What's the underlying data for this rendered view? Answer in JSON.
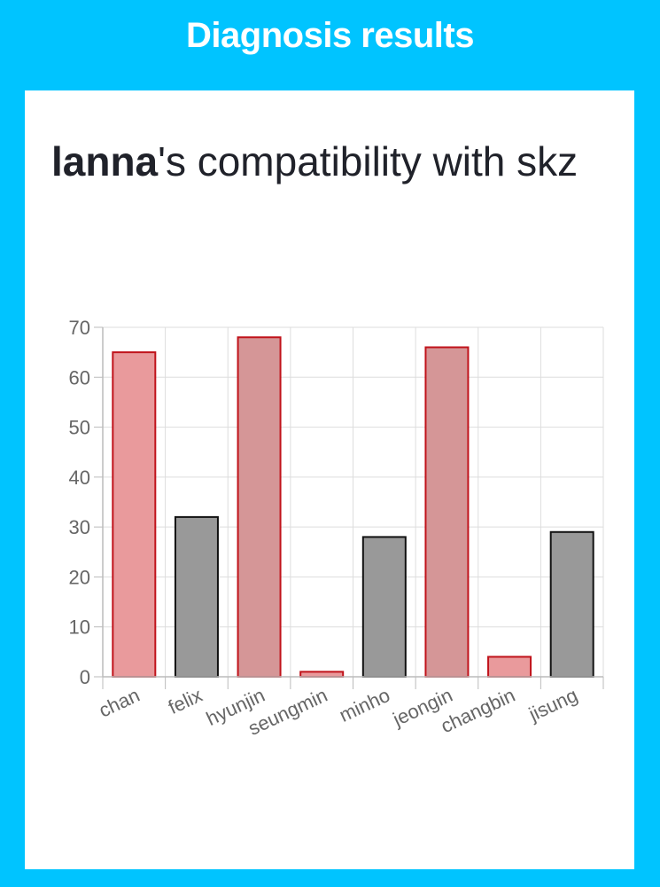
{
  "header": {
    "title": "Diagnosis results"
  },
  "result": {
    "user_name": "lanna",
    "suffix": "'s compatibility with skz"
  },
  "colors": {
    "background": "#00c4ff",
    "card": "#ffffff",
    "high_fill": "#e99a9c",
    "high_fill_alt": "#d59697",
    "high_stroke": "#c0121a",
    "low_fill": "#999999",
    "low_stroke": "#111111"
  },
  "chart_data": {
    "type": "bar",
    "categories": [
      "chan",
      "felix",
      "hyunjin",
      "seungmin",
      "minho",
      "jeongin",
      "changbin",
      "jisung"
    ],
    "values": [
      65,
      32,
      68,
      1,
      28,
      66,
      4,
      29
    ],
    "ylim": [
      0,
      70
    ],
    "yticks": [
      "0",
      "10",
      "20",
      "30",
      "40",
      "50",
      "60",
      "70"
    ],
    "grid": true,
    "title": "",
    "xlabel": "",
    "ylabel": ""
  }
}
